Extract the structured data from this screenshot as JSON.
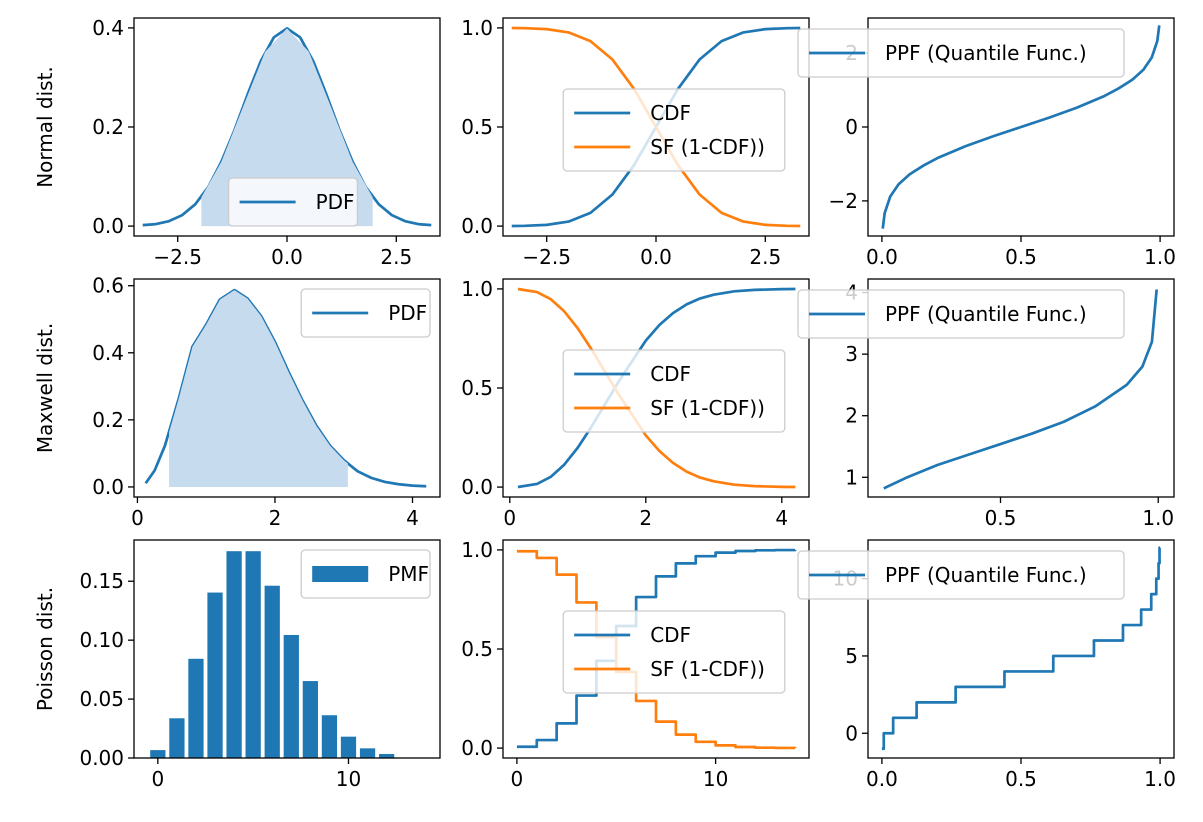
{
  "colors": {
    "blue": "#1f77b4",
    "orange": "#ff7f0e",
    "fill": "#c6dbee",
    "axes": "#000000",
    "legend_edge": "#cccccc"
  },
  "chart_data": [
    {
      "id": "normal_pdf",
      "row": 0,
      "col": 0,
      "type": "area",
      "ylabel": "Normal dist.",
      "xlim": [
        -3.5,
        3.5
      ],
      "ylim": [
        -0.02,
        0.42
      ],
      "xticks": [
        -2.5,
        0.0,
        2.5
      ],
      "xtick_labels": [
        "−2.5",
        "0.0",
        "2.5"
      ],
      "yticks": [
        0.0,
        0.2,
        0.4
      ],
      "ytick_labels": [
        "0.0",
        "0.2",
        "0.4"
      ],
      "legend": {
        "loc": "lower-center",
        "entries": [
          {
            "label": "PDF",
            "kind": "line",
            "color": "blue"
          }
        ]
      },
      "series": [
        {
          "name": "PDF",
          "kind": "line",
          "color": "blue",
          "x": [
            -3.3,
            -3.0,
            -2.7,
            -2.4,
            -2.1,
            -1.8,
            -1.5,
            -1.2,
            -0.9,
            -0.6,
            -0.3,
            0.0,
            0.3,
            0.6,
            0.9,
            1.2,
            1.5,
            1.8,
            2.1,
            2.4,
            2.7,
            3.0,
            3.3
          ],
          "y": [
            0.002,
            0.004,
            0.01,
            0.022,
            0.044,
            0.079,
            0.13,
            0.194,
            0.266,
            0.333,
            0.381,
            0.399,
            0.381,
            0.333,
            0.266,
            0.194,
            0.13,
            0.079,
            0.044,
            0.022,
            0.01,
            0.004,
            0.002
          ]
        },
        {
          "name": "shaded interval",
          "kind": "fill",
          "color": "fill",
          "x": [
            -1.96,
            -1.5,
            -1.0,
            -0.5,
            0.0,
            0.5,
            1.0,
            1.5,
            1.96
          ],
          "y": [
            0.058,
            0.13,
            0.242,
            0.352,
            0.399,
            0.352,
            0.242,
            0.13,
            0.058
          ]
        }
      ]
    },
    {
      "id": "normal_cdf",
      "row": 0,
      "col": 1,
      "type": "line",
      "xlim": [
        -3.5,
        3.5
      ],
      "ylim": [
        -0.05,
        1.05
      ],
      "xticks": [
        -2.5,
        0.0,
        2.5
      ],
      "xtick_labels": [
        "−2.5",
        "0.0",
        "2.5"
      ],
      "yticks": [
        0.0,
        0.5,
        1.0
      ],
      "ytick_labels": [
        "0.0",
        "0.5",
        "1.0"
      ],
      "legend": {
        "loc": "center",
        "entries": [
          {
            "label": "CDF",
            "kind": "line",
            "color": "blue"
          },
          {
            "label": "SF (1-CDF))",
            "kind": "line",
            "color": "orange"
          }
        ]
      },
      "series": [
        {
          "name": "CDF",
          "kind": "line",
          "color": "blue",
          "x": [
            -3.3,
            -3.0,
            -2.5,
            -2.0,
            -1.5,
            -1.0,
            -0.5,
            0.0,
            0.5,
            1.0,
            1.5,
            2.0,
            2.5,
            3.0,
            3.3
          ],
          "y": [
            0.0005,
            0.0013,
            0.0062,
            0.0228,
            0.0668,
            0.1587,
            0.3085,
            0.5,
            0.6915,
            0.8413,
            0.9332,
            0.9772,
            0.9938,
            0.9987,
            0.9995
          ]
        },
        {
          "name": "SF (1-CDF))",
          "kind": "line",
          "color": "orange",
          "x": [
            -3.3,
            -3.0,
            -2.5,
            -2.0,
            -1.5,
            -1.0,
            -0.5,
            0.0,
            0.5,
            1.0,
            1.5,
            2.0,
            2.5,
            3.0,
            3.3
          ],
          "y": [
            0.9995,
            0.9987,
            0.9938,
            0.9772,
            0.9332,
            0.8413,
            0.6915,
            0.5,
            0.3085,
            0.1587,
            0.0668,
            0.0228,
            0.0062,
            0.0013,
            0.0005
          ]
        }
      ]
    },
    {
      "id": "normal_ppf",
      "row": 0,
      "col": 2,
      "type": "line",
      "xlim": [
        -0.05,
        1.05
      ],
      "ylim": [
        -2.95,
        2.95
      ],
      "xticks": [
        0.0,
        0.5,
        1.0
      ],
      "xtick_labels": [
        "0.0",
        "0.5",
        "1.0"
      ],
      "yticks": [
        -2,
        0,
        2
      ],
      "ytick_labels": [
        "−2",
        "0",
        "2"
      ],
      "legend": {
        "loc": "upper-left-outside",
        "entries": [
          {
            "label": "PPF (Quantile Func.)",
            "kind": "line",
            "color": "blue"
          }
        ]
      },
      "series": [
        {
          "name": "PPF (Quantile Func.)",
          "kind": "line",
          "color": "blue",
          "x": [
            0.003,
            0.01,
            0.03,
            0.06,
            0.1,
            0.15,
            0.2,
            0.3,
            0.4,
            0.5,
            0.6,
            0.7,
            0.8,
            0.85,
            0.9,
            0.94,
            0.97,
            0.99,
            0.997
          ],
          "y": [
            -2.75,
            -2.33,
            -1.88,
            -1.55,
            -1.28,
            -1.04,
            -0.84,
            -0.52,
            -0.25,
            0.0,
            0.25,
            0.52,
            0.84,
            1.04,
            1.28,
            1.55,
            1.88,
            2.33,
            2.75
          ]
        }
      ]
    },
    {
      "id": "maxwell_pdf",
      "row": 1,
      "col": 0,
      "type": "area",
      "ylabel": "Maxwell dist.",
      "xlim": [
        -0.05,
        4.4
      ],
      "ylim": [
        -0.03,
        0.62
      ],
      "xticks": [
        0,
        2,
        4
      ],
      "xtick_labels": [
        "0",
        "2",
        "4"
      ],
      "yticks": [
        0.0,
        0.2,
        0.4,
        0.6
      ],
      "ytick_labels": [
        "0.0",
        "0.2",
        "0.4",
        "0.6"
      ],
      "legend": {
        "loc": "upper-right",
        "entries": [
          {
            "label": "PDF",
            "kind": "line",
            "color": "blue"
          }
        ]
      },
      "series": [
        {
          "name": "PDF",
          "kind": "line",
          "color": "blue",
          "x": [
            0.12,
            0.25,
            0.4,
            0.6,
            0.8,
            1.0,
            1.2,
            1.41,
            1.6,
            1.8,
            2.0,
            2.2,
            2.4,
            2.6,
            2.8,
            3.0,
            3.2,
            3.4,
            3.6,
            3.8,
            4.0,
            4.2
          ],
          "y": [
            0.011,
            0.049,
            0.123,
            0.263,
            0.418,
            0.484,
            0.559,
            0.587,
            0.562,
            0.509,
            0.432,
            0.342,
            0.258,
            0.183,
            0.123,
            0.08,
            0.047,
            0.027,
            0.015,
            0.008,
            0.004,
            0.002
          ]
        },
        {
          "name": "shaded interval",
          "kind": "fill",
          "color": "fill",
          "x": [
            0.46,
            0.6,
            0.8,
            1.0,
            1.2,
            1.41,
            1.6,
            1.8,
            2.0,
            2.2,
            2.4,
            2.6,
            2.8,
            3.0,
            3.06
          ],
          "y": [
            0.163,
            0.263,
            0.418,
            0.484,
            0.559,
            0.587,
            0.562,
            0.509,
            0.432,
            0.342,
            0.258,
            0.183,
            0.123,
            0.08,
            0.07
          ]
        }
      ]
    },
    {
      "id": "maxwell_cdf",
      "row": 1,
      "col": 1,
      "type": "line",
      "xlim": [
        -0.1,
        4.4
      ],
      "ylim": [
        -0.05,
        1.05
      ],
      "xticks": [
        0,
        2,
        4
      ],
      "xtick_labels": [
        "0",
        "2",
        "4"
      ],
      "yticks": [
        0.0,
        0.5,
        1.0
      ],
      "ytick_labels": [
        "0.0",
        "0.5",
        "1.0"
      ],
      "legend": {
        "loc": "center",
        "entries": [
          {
            "label": "CDF",
            "kind": "line",
            "color": "blue"
          },
          {
            "label": "SF (1-CDF))",
            "kind": "line",
            "color": "orange"
          }
        ]
      },
      "series": [
        {
          "name": "CDF",
          "kind": "line",
          "color": "blue",
          "x": [
            0.12,
            0.4,
            0.6,
            0.8,
            1.0,
            1.2,
            1.4,
            1.6,
            1.8,
            2.0,
            2.2,
            2.4,
            2.6,
            2.8,
            3.0,
            3.3,
            3.6,
            4.0,
            4.2
          ],
          "y": [
            0.0005,
            0.016,
            0.051,
            0.113,
            0.199,
            0.304,
            0.418,
            0.532,
            0.636,
            0.739,
            0.818,
            0.878,
            0.922,
            0.952,
            0.971,
            0.988,
            0.995,
            0.999,
            0.9995
          ]
        },
        {
          "name": "SF (1-CDF))",
          "kind": "line",
          "color": "orange",
          "x": [
            0.12,
            0.4,
            0.6,
            0.8,
            1.0,
            1.2,
            1.4,
            1.6,
            1.8,
            2.0,
            2.2,
            2.4,
            2.6,
            2.8,
            3.0,
            3.3,
            3.6,
            4.0,
            4.2
          ],
          "y": [
            0.9995,
            0.984,
            0.949,
            0.887,
            0.801,
            0.696,
            0.582,
            0.468,
            0.364,
            0.261,
            0.182,
            0.122,
            0.078,
            0.048,
            0.029,
            0.012,
            0.005,
            0.001,
            0.0005
          ]
        }
      ]
    },
    {
      "id": "maxwell_ppf",
      "row": 1,
      "col": 2,
      "type": "line",
      "xlim": [
        0.08,
        1.05
      ],
      "ylim": [
        0.68,
        4.22
      ],
      "xticks": [
        0.5,
        1.0
      ],
      "xtick_labels": [
        "0.5",
        "1.0"
      ],
      "yticks": [
        1,
        2,
        3,
        4
      ],
      "ytick_labels": [
        "1",
        "2",
        "3",
        "4"
      ],
      "legend": {
        "loc": "upper-left-outside",
        "entries": [
          {
            "label": "PPF (Quantile Func.)",
            "kind": "line",
            "color": "blue"
          }
        ]
      },
      "series": [
        {
          "name": "PPF (Quantile Func.)",
          "kind": "line",
          "color": "blue",
          "x": [
            0.13,
            0.2,
            0.3,
            0.4,
            0.5,
            0.6,
            0.7,
            0.8,
            0.9,
            0.95,
            0.98,
            0.995
          ],
          "y": [
            0.82,
            0.99,
            1.2,
            1.37,
            1.54,
            1.71,
            1.9,
            2.15,
            2.5,
            2.8,
            3.2,
            4.05
          ]
        }
      ]
    },
    {
      "id": "poisson_pmf",
      "row": 2,
      "col": 0,
      "type": "bar",
      "ylabel": "Poisson dist.",
      "xlim": [
        -1.25,
        14.8
      ],
      "ylim": [
        0,
        0.185
      ],
      "xticks": [
        0,
        10
      ],
      "xtick_labels": [
        "0",
        "10"
      ],
      "yticks": [
        0.0,
        0.05,
        0.1,
        0.15
      ],
      "ytick_labels": [
        "0.00",
        "0.05",
        "0.10",
        "0.15"
      ],
      "legend": {
        "loc": "upper-right",
        "entries": [
          {
            "label": "PMF",
            "kind": "patch",
            "color": "blue"
          }
        ]
      },
      "categories": [
        0,
        1,
        2,
        3,
        4,
        5,
        6,
        7,
        8,
        9,
        10,
        11,
        12
      ],
      "series": [
        {
          "name": "PMF",
          "kind": "bar",
          "color": "blue",
          "x": [
            0,
            1,
            2,
            3,
            4,
            5,
            6,
            7,
            8,
            9,
            10,
            11,
            12
          ],
          "y": [
            0.0067,
            0.0337,
            0.0842,
            0.1404,
            0.1755,
            0.1755,
            0.1462,
            0.1044,
            0.0653,
            0.0363,
            0.0181,
            0.0082,
            0.0034
          ]
        }
      ]
    },
    {
      "id": "poisson_cdf",
      "row": 2,
      "col": 1,
      "type": "line",
      "xlim": [
        -0.7,
        14.7
      ],
      "ylim": [
        -0.05,
        1.05
      ],
      "xticks": [
        0,
        10
      ],
      "xtick_labels": [
        "0",
        "10"
      ],
      "yticks": [
        0.0,
        0.5,
        1.0
      ],
      "ytick_labels": [
        "0.0",
        "0.5",
        "1.0"
      ],
      "legend": {
        "loc": "center",
        "entries": [
          {
            "label": "CDF",
            "kind": "line",
            "color": "blue"
          },
          {
            "label": "SF (1-CDF))",
            "kind": "line",
            "color": "orange"
          }
        ]
      },
      "series": [
        {
          "name": "CDF",
          "kind": "step",
          "color": "blue",
          "x": [
            0,
            1,
            2,
            3,
            4,
            5,
            6,
            7,
            8,
            9,
            10,
            11,
            12,
            13,
            14
          ],
          "y": [
            0.0067,
            0.0404,
            0.1247,
            0.265,
            0.4405,
            0.616,
            0.7622,
            0.8666,
            0.9319,
            0.9682,
            0.9863,
            0.9945,
            0.998,
            0.9993,
            0.9998
          ]
        },
        {
          "name": "SF (1-CDF))",
          "kind": "step",
          "color": "orange",
          "x": [
            0,
            1,
            2,
            3,
            4,
            5,
            6,
            7,
            8,
            9,
            10,
            11,
            12,
            13,
            14
          ],
          "y": [
            0.9933,
            0.9596,
            0.8753,
            0.735,
            0.5595,
            0.384,
            0.2378,
            0.1334,
            0.0681,
            0.0318,
            0.0137,
            0.0055,
            0.002,
            0.0007,
            0.0002
          ]
        }
      ]
    },
    {
      "id": "poisson_ppf",
      "row": 2,
      "col": 2,
      "type": "line",
      "xlim": [
        -0.05,
        1.05
      ],
      "ylim": [
        -1.6,
        12.5
      ],
      "xticks": [
        0.0,
        0.5,
        1.0
      ],
      "xtick_labels": [
        "0.0",
        "0.5",
        "1.0"
      ],
      "yticks": [
        0,
        5,
        10
      ],
      "ytick_labels": [
        "0",
        "5",
        "10"
      ],
      "legend": {
        "loc": "upper-left-outside",
        "entries": [
          {
            "label": "PPF (Quantile Func.)",
            "kind": "line",
            "color": "blue"
          }
        ]
      },
      "series": [
        {
          "name": "PPF (Quantile Func.)",
          "kind": "ppfstep",
          "color": "blue",
          "x": [
            0.0,
            0.0067,
            0.0404,
            0.1247,
            0.265,
            0.4405,
            0.616,
            0.7622,
            0.8666,
            0.9319,
            0.9682,
            0.9863,
            0.9945,
            0.998
          ],
          "y": [
            -1,
            0,
            1,
            2,
            3,
            4,
            5,
            6,
            7,
            8,
            9,
            10,
            11,
            12
          ]
        }
      ]
    }
  ]
}
